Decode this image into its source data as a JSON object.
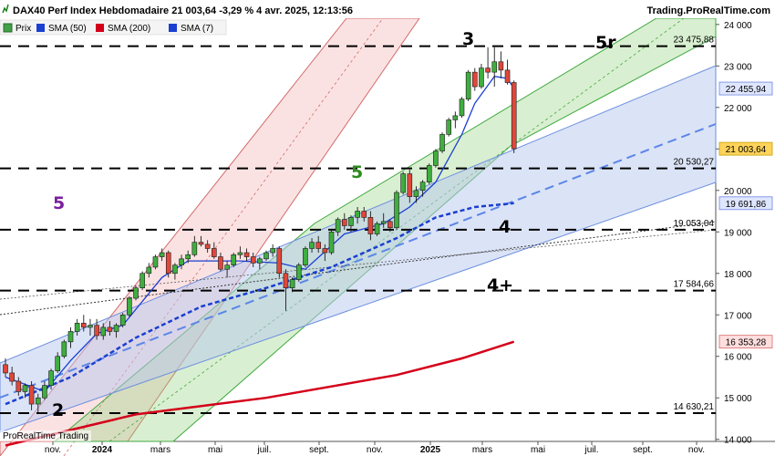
{
  "header": {
    "title": "DAX40 Perf Index Hebdomadaire 21 003,64 -3,29 % 4 avr. 2025, 12:13:56",
    "source": "Trading.ProRealTime.com",
    "footer": "ProRealTime Trading"
  },
  "legend": [
    {
      "label": "Prix",
      "color": "#43a047"
    },
    {
      "label": "SMA (50)",
      "color": "#1a3fd1"
    },
    {
      "label": "SMA (200)",
      "color": "#d4001a"
    },
    {
      "label": "SMA (7)",
      "color": "#1a3fd1"
    }
  ],
  "chart_data": {
    "type": "candlestick",
    "y_ticks": [
      "24 000",
      "23 000",
      "22 000",
      "21 000",
      "20 000",
      "19 000",
      "18 000",
      "17 000",
      "16 000",
      "15 000",
      "14 000"
    ],
    "x_ticks": [
      "nov.",
      "2024",
      "mars",
      "mai",
      "juil.",
      "sept.",
      "nov.",
      "2025",
      "mars",
      "mai",
      "juil.",
      "sept.",
      "nov."
    ],
    "x_tick_bold": [
      "2024",
      "2025"
    ],
    "ylim": [
      13950,
      24150
    ],
    "levels": [
      {
        "value": 23475.88,
        "label": "23 475,88"
      },
      {
        "value": 20530.27,
        "label": "20 530,27"
      },
      {
        "value": 19053.04,
        "label": "19 053,04"
      },
      {
        "value": 17584.66,
        "label": "17 584,66"
      },
      {
        "value": 14630.21,
        "label": "14 630,21"
      }
    ],
    "price_tags": [
      {
        "value": 22455.94,
        "label": "22 455,94",
        "color": "#1a3fd1",
        "fill": "#dfe6ff",
        "border": "#6f86e0"
      },
      {
        "value": 21003.64,
        "label": "21 003,64",
        "color": "#000000",
        "fill": "#ffd35a",
        "border": "#c9a000"
      },
      {
        "value": 19691.86,
        "label": "19 691,86",
        "color": "#1a3fd1",
        "fill": "#dfe6ff",
        "border": "#6f86e0"
      },
      {
        "value": 16353.28,
        "label": "16 353,28",
        "color": "#c8001a",
        "fill": "#ffdede",
        "border": "#d86a6a"
      }
    ],
    "wave_labels": [
      {
        "text": "3",
        "color": "#000000"
      },
      {
        "text": "5r",
        "color": "#000000"
      },
      {
        "text": "5",
        "color": "#2e8b1e"
      },
      {
        "text": "5",
        "color": "#7a1fa0"
      },
      {
        "text": "4",
        "color": "#000000"
      },
      {
        "text": "4+",
        "color": "#000000"
      },
      {
        "text": "2",
        "color": "#000000"
      }
    ],
    "candles": [
      [
        15800,
        15950,
        15500,
        15600
      ],
      [
        15600,
        15750,
        15300,
        15400
      ],
      [
        15400,
        15500,
        15050,
        15150
      ],
      [
        15150,
        15350,
        15000,
        15300
      ],
      [
        15300,
        15400,
        14700,
        14850
      ],
      [
        14850,
        15100,
        14650,
        15000
      ],
      [
        15000,
        15400,
        14950,
        15300
      ],
      [
        15300,
        15700,
        15200,
        15650
      ],
      [
        15650,
        16100,
        15600,
        16000
      ],
      [
        16000,
        16400,
        15950,
        16350
      ],
      [
        16350,
        16700,
        16200,
        16600
      ],
      [
        16600,
        16900,
        16500,
        16800
      ],
      [
        16800,
        17000,
        16600,
        16700
      ],
      [
        16700,
        16900,
        16500,
        16750
      ],
      [
        16750,
        16900,
        16400,
        16500
      ],
      [
        16500,
        16800,
        16400,
        16700
      ],
      [
        16700,
        16850,
        16500,
        16600
      ],
      [
        16600,
        16800,
        16450,
        16750
      ],
      [
        16750,
        17050,
        16700,
        17000
      ],
      [
        17000,
        17450,
        16950,
        17400
      ],
      [
        17400,
        17700,
        17350,
        17650
      ],
      [
        17650,
        18050,
        17600,
        18000
      ],
      [
        18000,
        18250,
        17900,
        18150
      ],
      [
        18150,
        18450,
        18100,
        18400
      ],
      [
        18400,
        18600,
        18300,
        18500
      ],
      [
        18500,
        18550,
        17900,
        18000
      ],
      [
        18000,
        18250,
        17850,
        18200
      ],
      [
        18200,
        18450,
        18100,
        18350
      ],
      [
        18350,
        18550,
        18250,
        18450
      ],
      [
        18450,
        18900,
        18400,
        18750
      ],
      [
        18750,
        18900,
        18650,
        18700
      ],
      [
        18700,
        18800,
        18500,
        18600
      ],
      [
        18600,
        18750,
        18350,
        18400
      ],
      [
        18400,
        18500,
        18050,
        18100
      ],
      [
        18100,
        18300,
        17900,
        18200
      ],
      [
        18200,
        18500,
        18150,
        18450
      ],
      [
        18450,
        18650,
        18350,
        18500
      ],
      [
        18500,
        18600,
        18300,
        18400
      ],
      [
        18400,
        18500,
        18150,
        18250
      ],
      [
        18250,
        18400,
        18100,
        18350
      ],
      [
        18350,
        18550,
        18300,
        18500
      ],
      [
        18500,
        18700,
        18400,
        18600
      ],
      [
        18600,
        18650,
        17900,
        18000
      ],
      [
        18000,
        18100,
        17100,
        17650
      ],
      [
        17650,
        17900,
        17550,
        17850
      ],
      [
        17850,
        18250,
        17800,
        18200
      ],
      [
        18200,
        18650,
        18150,
        18600
      ],
      [
        18600,
        18850,
        18500,
        18750
      ],
      [
        18750,
        18900,
        18500,
        18600
      ],
      [
        18600,
        18700,
        18300,
        18500
      ],
      [
        18500,
        19050,
        18450,
        19000
      ],
      [
        19000,
        19350,
        18900,
        19300
      ],
      [
        19300,
        19450,
        19050,
        19150
      ],
      [
        19150,
        19400,
        19000,
        19350
      ],
      [
        19350,
        19600,
        19200,
        19500
      ],
      [
        19500,
        19600,
        19250,
        19350
      ],
      [
        19350,
        19500,
        18800,
        18950
      ],
      [
        18950,
        19250,
        18900,
        19200
      ],
      [
        19200,
        19450,
        19100,
        19250
      ],
      [
        19250,
        19300,
        19000,
        19100
      ],
      [
        19100,
        20000,
        19050,
        19950
      ],
      [
        19950,
        20450,
        19900,
        20400
      ],
      [
        20400,
        20500,
        19700,
        19850
      ],
      [
        19850,
        20100,
        19700,
        20000
      ],
      [
        20000,
        20250,
        19850,
        20200
      ],
      [
        20200,
        20650,
        20150,
        20600
      ],
      [
        20600,
        21000,
        20550,
        20950
      ],
      [
        20950,
        21400,
        20900,
        21350
      ],
      [
        21350,
        21750,
        21300,
        21700
      ],
      [
        21700,
        21900,
        21500,
        21800
      ],
      [
        21800,
        22250,
        21750,
        22200
      ],
      [
        22200,
        22900,
        22150,
        22850
      ],
      [
        22850,
        22950,
        22400,
        22500
      ],
      [
        22500,
        23050,
        22450,
        22950
      ],
      [
        22950,
        23450,
        22700,
        22850
      ],
      [
        22850,
        23450,
        22500,
        23100
      ],
      [
        23100,
        23350,
        22700,
        22900
      ],
      [
        22900,
        23150,
        22550,
        22600
      ],
      [
        22600,
        22650,
        20900,
        21003.64
      ]
    ],
    "sma7": [
      [
        0,
        15500
      ],
      [
        6,
        15150
      ],
      [
        10,
        15900
      ],
      [
        14,
        16550
      ],
      [
        18,
        16750
      ],
      [
        24,
        17900
      ],
      [
        28,
        18300
      ],
      [
        36,
        18300
      ],
      [
        42,
        18250
      ],
      [
        46,
        18100
      ],
      [
        52,
        18950
      ],
      [
        58,
        19200
      ],
      [
        62,
        19600
      ],
      [
        66,
        20200
      ],
      [
        70,
        21350
      ],
      [
        72,
        22100
      ],
      [
        75,
        22750
      ],
      [
        77,
        22700
      ],
      [
        78,
        22455.94
      ]
    ],
    "sma50": [
      [
        0,
        14850
      ],
      [
        10,
        15500
      ],
      [
        20,
        16450
      ],
      [
        30,
        17200
      ],
      [
        40,
        17650
      ],
      [
        50,
        18150
      ],
      [
        60,
        18850
      ],
      [
        66,
        19350
      ],
      [
        72,
        19600
      ],
      [
        78,
        19691.86
      ]
    ],
    "sma200": [
      [
        0,
        13850
      ],
      [
        20,
        14600
      ],
      [
        40,
        15000
      ],
      [
        60,
        15550
      ],
      [
        70,
        15950
      ],
      [
        78,
        16353.28
      ]
    ]
  }
}
